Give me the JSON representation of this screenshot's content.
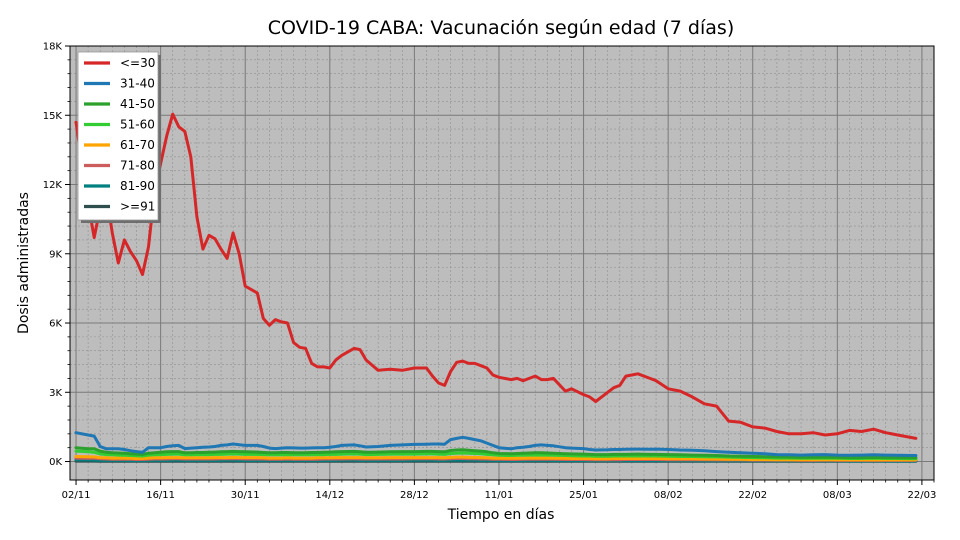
{
  "chart_data": {
    "type": "line",
    "title": "COVID-19 CABA: Vacunación según edad (7 días)",
    "xlabel": "Tiempo en días",
    "ylabel": "Dosis administradas",
    "ylim": [
      -800,
      18000
    ],
    "y_ticks": [
      0,
      3000,
      6000,
      9000,
      12000,
      15000,
      18000
    ],
    "y_tick_labels": [
      "0K",
      "3K",
      "6K",
      "9K",
      "12K",
      "15K",
      "18K"
    ],
    "x_ticks": [
      "02/11",
      "16/11",
      "30/11",
      "14/12",
      "28/12",
      "11/01",
      "25/01",
      "08/02",
      "22/02",
      "08/03",
      "22/03"
    ],
    "grid": true,
    "legend_position": "top-left",
    "x": [
      "2021-11-02",
      "2021-11-04",
      "2021-11-05",
      "2021-11-06",
      "2021-11-07",
      "2021-11-08",
      "2021-11-09",
      "2021-11-10",
      "2021-11-11",
      "2021-11-12",
      "2021-11-13",
      "2021-11-14",
      "2021-11-15",
      "2021-11-16",
      "2021-11-17",
      "2021-11-18",
      "2021-11-19",
      "2021-11-20",
      "2021-11-21",
      "2021-11-22",
      "2021-11-23",
      "2021-11-24",
      "2021-11-25",
      "2021-11-26",
      "2021-11-27",
      "2021-11-28",
      "2021-11-29",
      "2021-11-30",
      "2021-12-02",
      "2021-12-03",
      "2021-12-04",
      "2021-12-05",
      "2021-12-06",
      "2021-12-07",
      "2021-12-08",
      "2021-12-09",
      "2021-12-10",
      "2021-12-11",
      "2021-12-12",
      "2021-12-13",
      "2021-12-14",
      "2021-12-15",
      "2021-12-16",
      "2021-12-18",
      "2021-12-19",
      "2021-12-20",
      "2021-12-22",
      "2021-12-24",
      "2021-12-26",
      "2021-12-28",
      "2021-12-30",
      "2021-12-31",
      "2022-01-01",
      "2022-01-02",
      "2022-01-03",
      "2022-01-04",
      "2022-01-05",
      "2022-01-06",
      "2022-01-07",
      "2022-01-08",
      "2022-01-09",
      "2022-01-10",
      "2022-01-11",
      "2022-01-13",
      "2022-01-14",
      "2022-01-15",
      "2022-01-16",
      "2022-01-17",
      "2022-01-18",
      "2022-01-19",
      "2022-01-20",
      "2022-01-22",
      "2022-01-23",
      "2022-01-25",
      "2022-01-26",
      "2022-01-27",
      "2022-01-29",
      "2022-01-30",
      "2022-01-31",
      "2022-02-01",
      "2022-02-03",
      "2022-02-05",
      "2022-02-06",
      "2022-02-08",
      "2022-02-10",
      "2022-02-12",
      "2022-02-14",
      "2022-02-16",
      "2022-02-18",
      "2022-02-20",
      "2022-02-22",
      "2022-02-24",
      "2022-02-26",
      "2022-02-28",
      "2022-03-02",
      "2022-03-04",
      "2022-03-06",
      "2022-03-08",
      "2022-03-10",
      "2022-03-12",
      "2022-03-14",
      "2022-03-16",
      "2022-03-18",
      "2022-03-21"
    ],
    "series": [
      {
        "name": "<=30",
        "color": "#d62728",
        "values": [
          14700,
          11200,
          9700,
          11000,
          11600,
          9900,
          8600,
          9600,
          9100,
          8700,
          8100,
          9300,
          11700,
          12900,
          14100,
          15050,
          14500,
          14300,
          13200,
          10600,
          9200,
          9800,
          9650,
          9200,
          8800,
          9900,
          9000,
          7600,
          7300,
          6200,
          5900,
          6150,
          6050,
          6000,
          5150,
          4950,
          4900,
          4250,
          4100,
          4100,
          4050,
          4400,
          4600,
          4900,
          4850,
          4400,
          3950,
          4000,
          3950,
          4050,
          4050,
          3700,
          3400,
          3300,
          3900,
          4300,
          4350,
          4250,
          4250,
          4150,
          4050,
          3750,
          3650,
          3550,
          3600,
          3500,
          3600,
          3700,
          3550,
          3550,
          3600,
          3050,
          3150,
          2900,
          2800,
          2600,
          3000,
          3200,
          3300,
          3700,
          3800,
          3600,
          3500,
          3150,
          3050,
          2800,
          2500,
          2400,
          1750,
          1700,
          1500,
          1450,
          1300,
          1200,
          1200,
          1250,
          1150,
          1200,
          1350,
          1300,
          1400,
          1250,
          1150,
          1000
        ]
      },
      {
        "name": "31-40",
        "color": "#1f77b4",
        "values": [
          1250,
          1150,
          1100,
          650,
          550,
          550,
          550,
          520,
          470,
          430,
          400,
          600,
          600,
          600,
          650,
          680,
          700,
          560,
          580,
          600,
          620,
          630,
          650,
          700,
          720,
          760,
          730,
          700,
          700,
          650,
          580,
          560,
          580,
          600,
          590,
          580,
          580,
          590,
          600,
          600,
          620,
          650,
          700,
          720,
          680,
          630,
          650,
          700,
          720,
          740,
          750,
          760,
          760,
          750,
          950,
          1000,
          1050,
          1000,
          950,
          900,
          800,
          700,
          600,
          550,
          600,
          620,
          650,
          700,
          720,
          700,
          680,
          600,
          580,
          560,
          520,
          500,
          510,
          520,
          520,
          530,
          540,
          530,
          540,
          520,
          500,
          490,
          470,
          430,
          400,
          380,
          360,
          340,
          300,
          290,
          280,
          290,
          300,
          280,
          270,
          280,
          290,
          280,
          270,
          260
        ]
      },
      {
        "name": "41-50",
        "color": "#2ca02c",
        "values": [
          600,
          550,
          550,
          450,
          400,
          380,
          370,
          360,
          340,
          320,
          310,
          360,
          380,
          400,
          420,
          430,
          430,
          380,
          380,
          390,
          390,
          400,
          410,
          420,
          430,
          440,
          430,
          420,
          410,
          390,
          380,
          380,
          390,
          390,
          380,
          380,
          380,
          390,
          390,
          400,
          410,
          420,
          430,
          440,
          420,
          400,
          410,
          420,
          430,
          430,
          440,
          440,
          430,
          420,
          480,
          500,
          510,
          490,
          470,
          450,
          420,
          380,
          350,
          340,
          350,
          360,
          370,
          380,
          380,
          370,
          360,
          340,
          330,
          320,
          310,
          300,
          300,
          310,
          310,
          310,
          320,
          310,
          310,
          300,
          290,
          280,
          270,
          260,
          240,
          230,
          220,
          210,
          200,
          190,
          180,
          180,
          190,
          180,
          170,
          170,
          180,
          170,
          160,
          160
        ]
      },
      {
        "name": "51-60",
        "color": "#32cd32",
        "values": [
          450,
          420,
          400,
          330,
          300,
          290,
          280,
          270,
          260,
          250,
          240,
          280,
          290,
          300,
          310,
          320,
          320,
          290,
          290,
          300,
          300,
          300,
          310,
          310,
          320,
          330,
          320,
          310,
          310,
          300,
          290,
          290,
          290,
          300,
          290,
          290,
          290,
          290,
          300,
          300,
          310,
          310,
          320,
          330,
          320,
          300,
          310,
          320,
          320,
          320,
          330,
          330,
          320,
          310,
          350,
          360,
          370,
          360,
          350,
          340,
          310,
          290,
          270,
          260,
          270,
          270,
          280,
          280,
          280,
          280,
          270,
          260,
          250,
          240,
          240,
          230,
          230,
          240,
          240,
          240,
          240,
          240,
          240,
          230,
          220,
          220,
          210,
          200,
          190,
          180,
          170,
          160,
          150,
          150,
          140,
          140,
          150,
          140,
          130,
          130,
          140,
          130,
          130,
          120
        ]
      },
      {
        "name": "61-70",
        "color": "#ffa500",
        "values": [
          220,
          210,
          200,
          170,
          160,
          150,
          150,
          150,
          140,
          130,
          130,
          150,
          160,
          160,
          170,
          170,
          170,
          160,
          160,
          160,
          160,
          160,
          170,
          170,
          170,
          180,
          170,
          170,
          170,
          160,
          150,
          150,
          150,
          160,
          150,
          150,
          150,
          150,
          160,
          160,
          160,
          170,
          170,
          170,
          170,
          160,
          160,
          170,
          170,
          170,
          170,
          170,
          170,
          160,
          180,
          190,
          190,
          180,
          180,
          170,
          160,
          150,
          140,
          140,
          140,
          140,
          150,
          150,
          150,
          150,
          140,
          140,
          130,
          130,
          130,
          120,
          120,
          130,
          130,
          130,
          130,
          130,
          130,
          120,
          120,
          120,
          110,
          110,
          100,
          100,
          90,
          90,
          80,
          80,
          80,
          80,
          80,
          80,
          70,
          70,
          80,
          70,
          70,
          70
        ]
      },
      {
        "name": "71-80",
        "color": "#cd5c5c",
        "values": [
          150,
          140,
          140,
          120,
          110,
          100,
          100,
          100,
          100,
          90,
          90,
          100,
          110,
          110,
          110,
          120,
          120,
          110,
          110,
          110,
          110,
          110,
          110,
          120,
          120,
          120,
          120,
          110,
          110,
          110,
          100,
          100,
          100,
          110,
          100,
          100,
          100,
          100,
          100,
          110,
          110,
          110,
          110,
          120,
          110,
          110,
          110,
          110,
          110,
          120,
          120,
          120,
          110,
          110,
          120,
          130,
          130,
          120,
          120,
          110,
          110,
          100,
          100,
          90,
          90,
          100,
          100,
          100,
          100,
          100,
          100,
          90,
          90,
          90,
          80,
          80,
          80,
          80,
          80,
          90,
          90,
          90,
          90,
          80,
          80,
          80,
          80,
          70,
          70,
          70,
          60,
          60,
          60,
          60,
          50,
          50,
          60,
          50,
          50,
          50,
          50,
          50,
          50,
          50
        ]
      },
      {
        "name": "81-90",
        "color": "#008080",
        "values": [
          70,
          70,
          60,
          50,
          50,
          50,
          50,
          50,
          40,
          40,
          40,
          50,
          50,
          50,
          50,
          60,
          60,
          50,
          50,
          50,
          50,
          50,
          50,
          50,
          60,
          60,
          50,
          50,
          50,
          50,
          50,
          50,
          50,
          50,
          50,
          50,
          50,
          50,
          50,
          50,
          50,
          50,
          60,
          60,
          50,
          50,
          50,
          50,
          50,
          60,
          60,
          60,
          50,
          50,
          60,
          60,
          60,
          60,
          60,
          50,
          50,
          50,
          40,
          40,
          40,
          40,
          50,
          50,
          50,
          50,
          40,
          40,
          40,
          40,
          40,
          40,
          40,
          40,
          40,
          40,
          40,
          40,
          40,
          40,
          40,
          40,
          30,
          30,
          30,
          30,
          30,
          30,
          30,
          30,
          30,
          30,
          30,
          30,
          20,
          20,
          30,
          20,
          20,
          20
        ]
      },
      {
        "name": ">=91",
        "color": "#2f4f4f",
        "values": [
          20,
          20,
          20,
          15,
          15,
          15,
          15,
          15,
          10,
          10,
          10,
          15,
          15,
          15,
          15,
          15,
          15,
          15,
          15,
          15,
          15,
          15,
          15,
          15,
          15,
          15,
          15,
          15,
          15,
          15,
          15,
          15,
          15,
          15,
          15,
          15,
          15,
          15,
          15,
          15,
          15,
          15,
          15,
          15,
          15,
          15,
          15,
          15,
          15,
          15,
          15,
          15,
          15,
          15,
          15,
          15,
          15,
          15,
          15,
          15,
          15,
          15,
          10,
          10,
          10,
          10,
          10,
          10,
          10,
          10,
          10,
          10,
          10,
          10,
          10,
          10,
          10,
          10,
          10,
          10,
          10,
          10,
          10,
          10,
          10,
          10,
          10,
          10,
          10,
          10,
          10,
          10,
          10,
          10,
          10,
          10,
          10,
          10,
          10,
          10,
          10,
          10,
          10,
          10
        ]
      }
    ]
  }
}
